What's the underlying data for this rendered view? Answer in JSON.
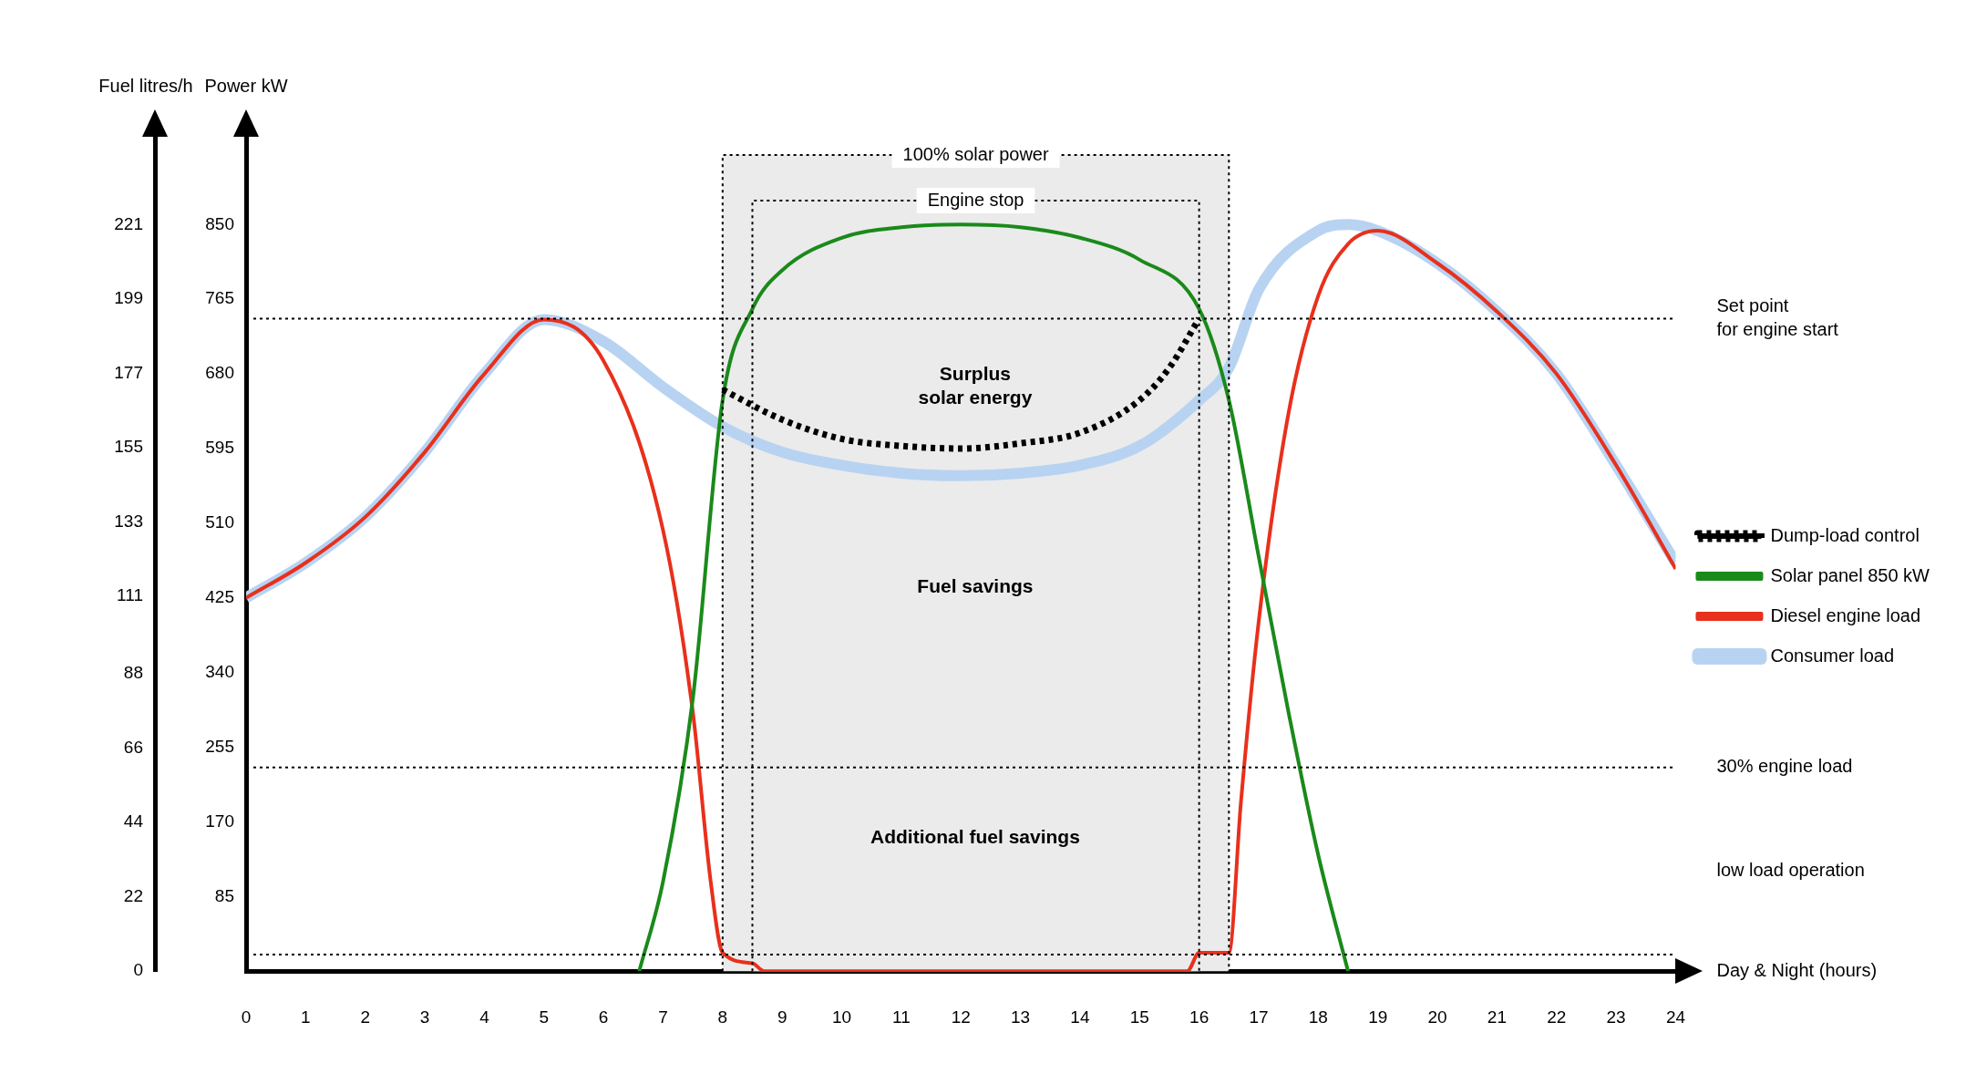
{
  "chart_data": {
    "type": "line",
    "xlabel": "Day & Night (hours)",
    "ylabel": "Power kW",
    "y2label": "Fuel litres/h",
    "xlim": [
      0,
      24
    ],
    "xticks": [
      0,
      1,
      2,
      3,
      4,
      5,
      6,
      7,
      8,
      9,
      10,
      11,
      12,
      13,
      14,
      15,
      16,
      17,
      18,
      19,
      20,
      21,
      22,
      23,
      24
    ],
    "ylim": [
      0,
      950
    ],
    "yticks": [
      85,
      170,
      255,
      340,
      425,
      510,
      595,
      680,
      765,
      850
    ],
    "y2lim": [
      0,
      247
    ],
    "y2ticks": [
      0,
      22,
      44,
      66,
      88,
      111,
      133,
      155,
      177,
      199,
      221
    ],
    "grid": false,
    "legend": "right",
    "marker": "none",
    "series": [
      {
        "name": "Solar panel 850 kW",
        "color": "#1a8a1a",
        "x": [
          6.6,
          7,
          7.5,
          8,
          8.5,
          9,
          10,
          11,
          12,
          13,
          14,
          15,
          16,
          16.5,
          17,
          17.5,
          18,
          18.5
        ],
        "values": [
          0,
          102,
          310,
          650,
          754,
          798,
          835,
          847,
          850,
          847,
          835,
          810,
          754,
          650,
          472,
          295,
          132,
          0
        ]
      },
      {
        "name": "Diesel engine load",
        "color": "#e8301c",
        "x": [
          0,
          1,
          2,
          3,
          4,
          5,
          6,
          7,
          7.5,
          7.8,
          8,
          8.5,
          8.7,
          15.8,
          16,
          16.5,
          16.7,
          17,
          17.5,
          18,
          18.5,
          19,
          20,
          21,
          22,
          23,
          24
        ],
        "values": [
          425,
          465,
          517,
          591,
          680,
          742,
          695,
          502,
          295,
          102,
          21,
          9,
          0,
          0,
          21,
          21,
          191,
          398,
          635,
          769,
          828,
          843,
          806,
          751,
          680,
          576,
          458
        ]
      },
      {
        "name": "Consumer load",
        "color": "#b8d3f2",
        "x": [
          0,
          1,
          2,
          3,
          4,
          5,
          6,
          7,
          8,
          9,
          10,
          11,
          12,
          13,
          14,
          15,
          16,
          16.5,
          17,
          18,
          18.5,
          19,
          20,
          21,
          22,
          23,
          24
        ],
        "values": [
          425,
          465,
          517,
          591,
          680,
          742,
          717,
          665,
          620,
          591,
          576,
          567,
          564,
          567,
          576,
          598,
          650,
          687,
          776,
          843,
          850,
          843,
          806,
          751,
          680,
          576,
          465
        ]
      },
      {
        "name": "Dump-load control",
        "color": "#000000",
        "line_style": "dotted",
        "x": [
          8,
          9,
          10,
          11,
          12,
          13,
          14,
          15,
          15.5,
          16
        ],
        "values": [
          662,
          628,
          606,
          598,
          595,
          601,
          613,
          650,
          687,
          743
        ]
      }
    ],
    "ref_lines": [
      {
        "axis": "y",
        "value": 743,
        "label": "Set point\nfor engine start"
      },
      {
        "axis": "y",
        "value": 232,
        "label": "30% engine load"
      },
      {
        "axis": "y",
        "value": 19
      }
    ],
    "bands": [
      {
        "axis": "x",
        "from": 8,
        "to": 16.5,
        "label": "100% solar power",
        "color": "#ebebeb"
      },
      {
        "axis": "x",
        "from": 8.5,
        "to": 16,
        "label": "Engine stop",
        "color": "#ebebeb"
      }
    ],
    "annotations": [
      "Surplus\nsolar energy",
      "Fuel savings",
      "Additional fuel savings",
      "low load operation"
    ]
  }
}
